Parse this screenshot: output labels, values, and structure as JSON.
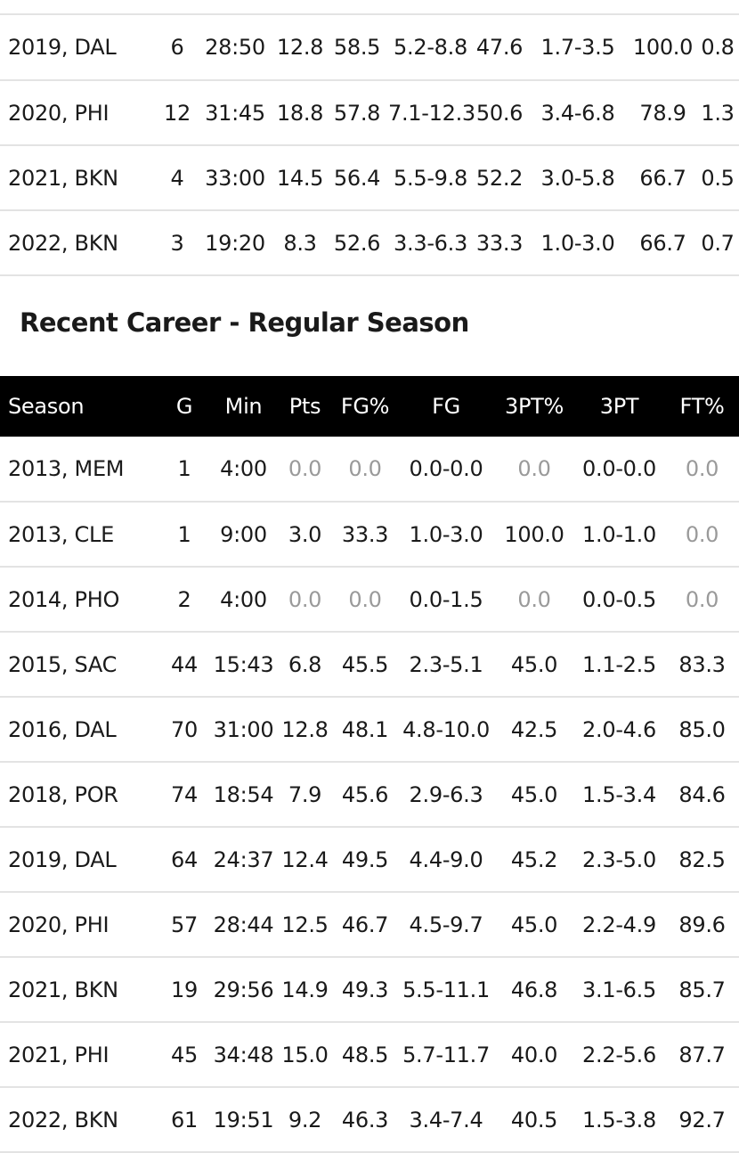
{
  "playoffs": {
    "rows": [
      [
        "2019, DAL",
        "6",
        "28:50",
        "12.8",
        "58.5",
        "5.2-8.8",
        "47.6",
        "1.7-3.5",
        "100.0",
        "0.8"
      ],
      [
        "2020, PHI",
        "12",
        "31:45",
        "18.8",
        "57.8",
        "7.1-12.3",
        "50.6",
        "3.4-6.8",
        "78.9",
        "1.3"
      ],
      [
        "2021, BKN",
        "4",
        "33:00",
        "14.5",
        "56.4",
        "5.5-9.8",
        "52.2",
        "3.0-5.8",
        "66.7",
        "0.5"
      ],
      [
        "2022, BKN",
        "3",
        "19:20",
        "8.3",
        "52.6",
        "3.3-6.3",
        "33.3",
        "1.0-3.0",
        "66.7",
        "0.7"
      ]
    ]
  },
  "regular_season": {
    "title": "Recent Career - Regular Season",
    "headers": [
      "Season",
      "G",
      "Min",
      "Pts",
      "FG%",
      "FG",
      "3PT%",
      "3PT",
      "FT%"
    ],
    "rows": [
      [
        "2013, MEM",
        "1",
        "4:00",
        "0.0",
        "0.0",
        "0.0-0.0",
        "0.0",
        "0.0-0.0",
        "0.0"
      ],
      [
        "2013, CLE",
        "1",
        "9:00",
        "3.0",
        "33.3",
        "1.0-3.0",
        "100.0",
        "1.0-1.0",
        "0.0"
      ],
      [
        "2014, PHO",
        "2",
        "4:00",
        "0.0",
        "0.0",
        "0.0-1.5",
        "0.0",
        "0.0-0.5",
        "0.0"
      ],
      [
        "2015, SAC",
        "44",
        "15:43",
        "6.8",
        "45.5",
        "2.3-5.1",
        "45.0",
        "1.1-2.5",
        "83.3"
      ],
      [
        "2016, DAL",
        "70",
        "31:00",
        "12.8",
        "48.1",
        "4.8-10.0",
        "42.5",
        "2.0-4.6",
        "85.0"
      ],
      [
        "2018, POR",
        "74",
        "18:54",
        "7.9",
        "45.6",
        "2.9-6.3",
        "45.0",
        "1.5-3.4",
        "84.6"
      ],
      [
        "2019, DAL",
        "64",
        "24:37",
        "12.4",
        "49.5",
        "4.4-9.0",
        "45.2",
        "2.3-5.0",
        "82.5"
      ],
      [
        "2020, PHI",
        "57",
        "28:44",
        "12.5",
        "46.7",
        "4.5-9.7",
        "45.0",
        "2.2-4.9",
        "89.6"
      ],
      [
        "2021, BKN",
        "19",
        "29:56",
        "14.9",
        "49.3",
        "5.5-11.1",
        "46.8",
        "3.1-6.5",
        "85.7"
      ],
      [
        "2021, PHI",
        "45",
        "34:48",
        "15.0",
        "48.5",
        "5.7-11.7",
        "40.0",
        "2.2-5.6",
        "87.7"
      ],
      [
        "2022, BKN",
        "61",
        "19:51",
        "9.2",
        "46.3",
        "3.4-7.4",
        "40.5",
        "1.5-3.8",
        "92.7"
      ]
    ]
  },
  "colors": {
    "header_bg": "#000000",
    "header_text": "#ffffff",
    "zero_value": "#9a9a9a",
    "divider": "#e3e3e3"
  }
}
